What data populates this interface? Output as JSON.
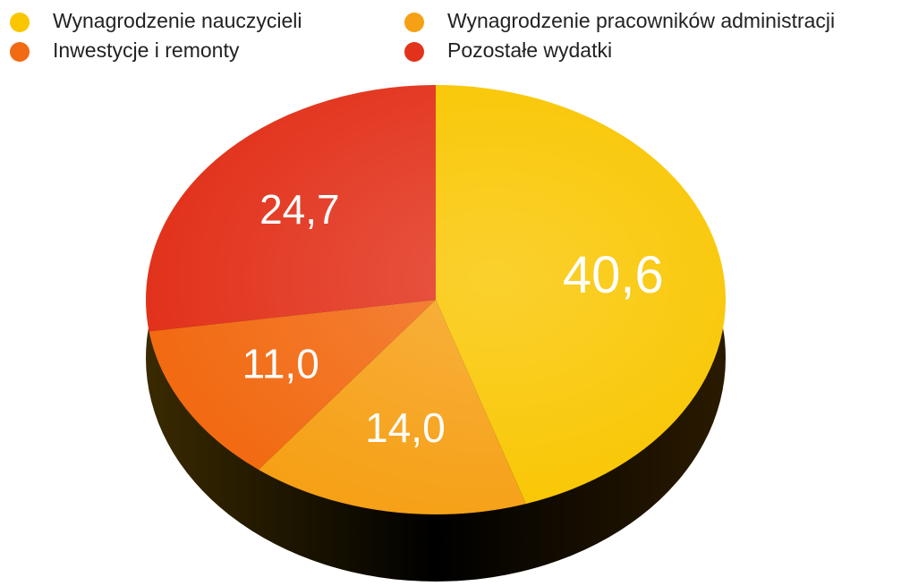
{
  "chart_data": {
    "type": "pie",
    "categories": [
      "Wynagrodzenie nauczycieli",
      "Wynagrodzenie pracowników administracji",
      "Inwestycje i remonty",
      "Pozostałe wydatki"
    ],
    "values": [
      40.6,
      14.0,
      11.0,
      24.7
    ],
    "value_labels": [
      "40,6",
      "14,0",
      "11,0",
      "24,7"
    ],
    "colors": [
      "#f9c600",
      "#f6a015",
      "#f26a12",
      "#e2321b"
    ],
    "legend": "top"
  }
}
